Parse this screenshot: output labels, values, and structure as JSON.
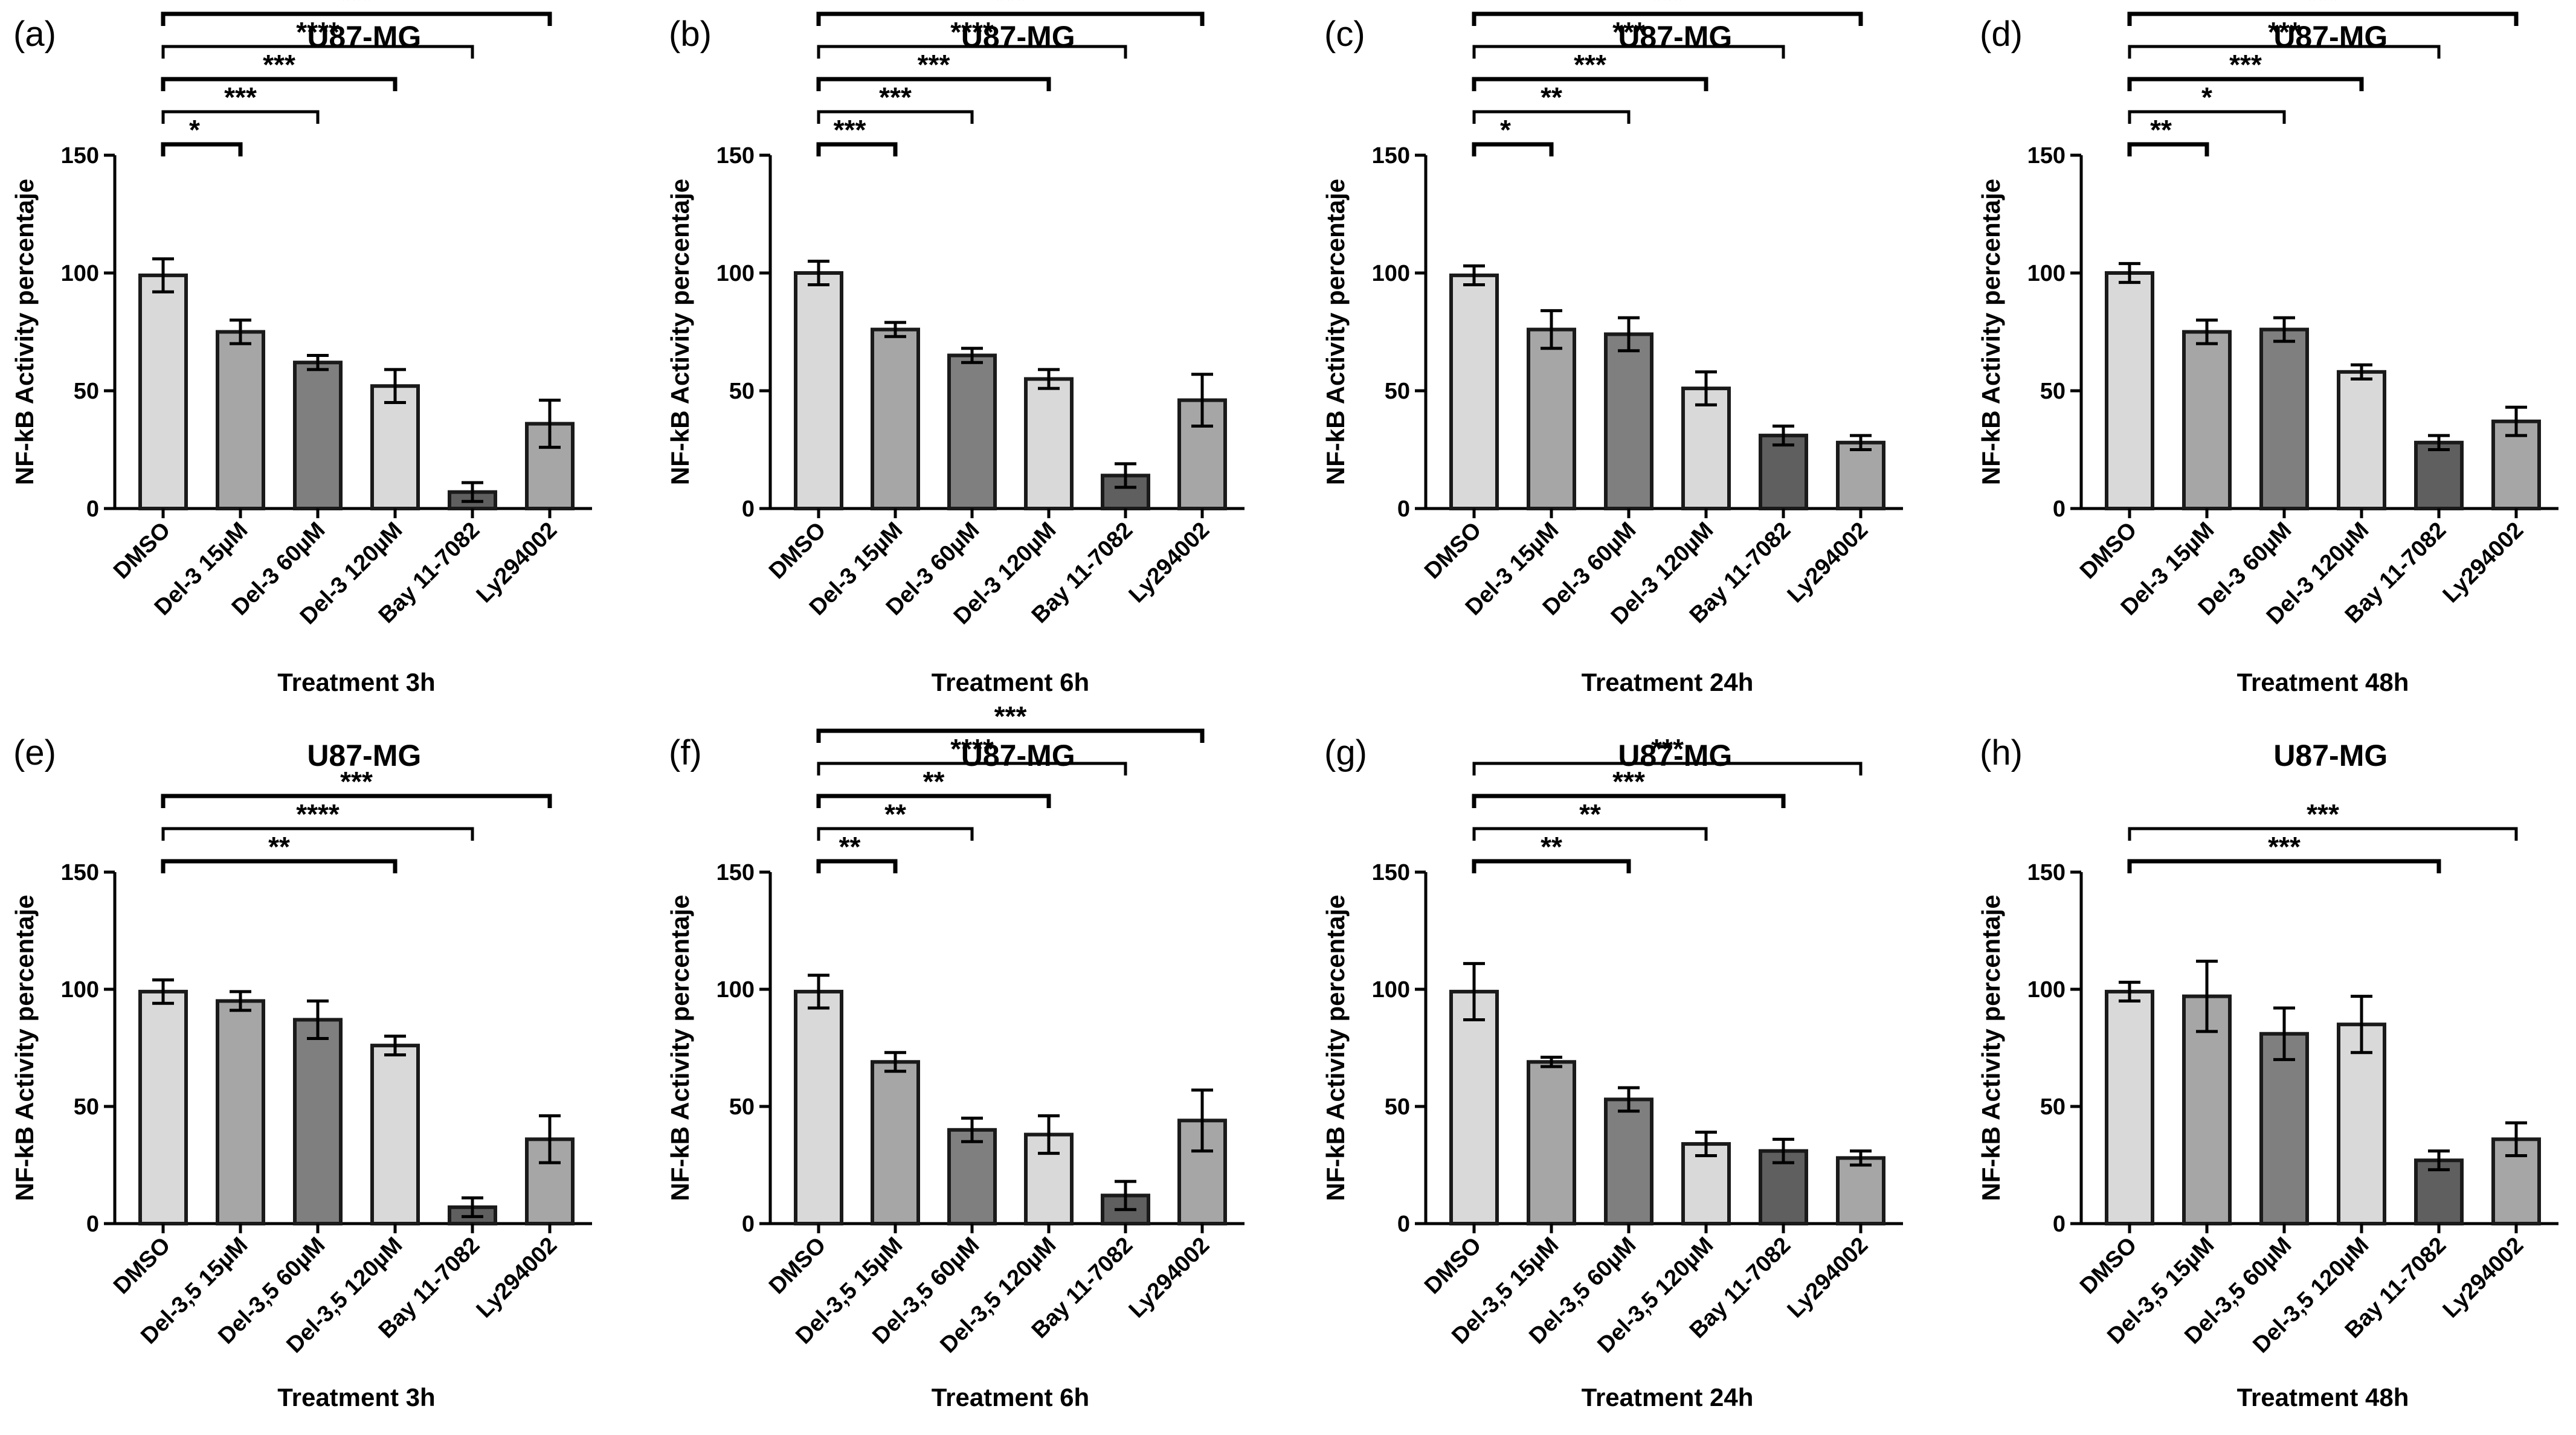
{
  "colors": {
    "light": "#d9d9d9",
    "mid": "#a6a6a6",
    "dark": "#7f7f7f",
    "darkest": "#5f5f5f",
    "outline": "#1a1a1a"
  },
  "chart_data": [
    {
      "panel": "(a)",
      "type": "bar",
      "title": "U87-MG",
      "xlabel": "Treatment 3h",
      "ylabel": "NF-kB Activity percentaje",
      "ylim": [
        0,
        150
      ],
      "yticks": [
        0,
        50,
        100,
        150
      ],
      "categories": [
        "DMSO",
        "Del-3 15µM",
        "Del-3 60µM",
        "Del-3 120µM",
        "Bay 11-7082",
        "Ly294002"
      ],
      "values": [
        99,
        75,
        62,
        52,
        7,
        36
      ],
      "errors": [
        7,
        5,
        3,
        7,
        4,
        10
      ],
      "bar_colors": [
        "light",
        "mid",
        "dark",
        "light",
        "darkest",
        "mid"
      ],
      "significance": [
        {
          "from": 0,
          "to": 1,
          "label": "*"
        },
        {
          "from": 0,
          "to": 2,
          "label": "***"
        },
        {
          "from": 0,
          "to": 3,
          "label": "***"
        },
        {
          "from": 0,
          "to": 4,
          "label": "****"
        },
        {
          "from": 0,
          "to": 5,
          "label": "***"
        }
      ]
    },
    {
      "panel": "(b)",
      "type": "bar",
      "title": "U87-MG",
      "xlabel": "Treatment 6h",
      "ylabel": "NF-kB Activity percentaje",
      "ylim": [
        0,
        150
      ],
      "yticks": [
        0,
        50,
        100,
        150
      ],
      "categories": [
        "DMSO",
        "Del-3 15µM",
        "Del-3 60µM",
        "Del-3 120µM",
        "Bay 11-7082",
        "Ly294002"
      ],
      "values": [
        100,
        76,
        65,
        55,
        14,
        46
      ],
      "errors": [
        5,
        3,
        3,
        4,
        5,
        11
      ],
      "bar_colors": [
        "light",
        "mid",
        "dark",
        "light",
        "darkest",
        "mid"
      ],
      "significance": [
        {
          "from": 0,
          "to": 1,
          "label": "***"
        },
        {
          "from": 0,
          "to": 2,
          "label": "***"
        },
        {
          "from": 0,
          "to": 3,
          "label": "***"
        },
        {
          "from": 0,
          "to": 4,
          "label": "****"
        },
        {
          "from": 0,
          "to": 5,
          "label": "***"
        }
      ]
    },
    {
      "panel": "(c)",
      "type": "bar",
      "title": "U87-MG",
      "xlabel": "Treatment 24h",
      "ylabel": "NF-kB Activity percentaje",
      "ylim": [
        0,
        150
      ],
      "yticks": [
        0,
        50,
        100,
        150
      ],
      "categories": [
        "DMSO",
        "Del-3 15µM",
        "Del-3 60µM",
        "Del-3 120µM",
        "Bay 11-7082",
        "Ly294002"
      ],
      "values": [
        99,
        76,
        74,
        51,
        31,
        28
      ],
      "errors": [
        4,
        8,
        7,
        7,
        4,
        3
      ],
      "bar_colors": [
        "light",
        "mid",
        "dark",
        "light",
        "darkest",
        "mid"
      ],
      "significance": [
        {
          "from": 0,
          "to": 1,
          "label": "*"
        },
        {
          "from": 0,
          "to": 2,
          "label": "**"
        },
        {
          "from": 0,
          "to": 3,
          "label": "***"
        },
        {
          "from": 0,
          "to": 4,
          "label": "***"
        },
        {
          "from": 0,
          "to": 5,
          "label": "***"
        }
      ]
    },
    {
      "panel": "(d)",
      "type": "bar",
      "title": "U87-MG",
      "xlabel": "Treatment 48h",
      "ylabel": "NF-kB Activity percentaje",
      "ylim": [
        0,
        150
      ],
      "yticks": [
        0,
        50,
        100,
        150
      ],
      "categories": [
        "DMSO",
        "Del-3 15µM",
        "Del-3 60µM",
        "Del-3 120µM",
        "Bay 11-7082",
        "Ly294002"
      ],
      "values": [
        100,
        75,
        76,
        58,
        28,
        37
      ],
      "errors": [
        4,
        5,
        5,
        3,
        3,
        6
      ],
      "bar_colors": [
        "light",
        "mid",
        "dark",
        "light",
        "darkest",
        "mid"
      ],
      "significance": [
        {
          "from": 0,
          "to": 1,
          "label": "**"
        },
        {
          "from": 0,
          "to": 2,
          "label": "*"
        },
        {
          "from": 0,
          "to": 3,
          "label": "***"
        },
        {
          "from": 0,
          "to": 4,
          "label": "***"
        },
        {
          "from": 0,
          "to": 5,
          "label": "***"
        }
      ]
    },
    {
      "panel": "(e)",
      "type": "bar",
      "title": "U87-MG",
      "xlabel": "Treatment 3h",
      "ylabel": "NF-kB Activity percentaje",
      "ylim": [
        0,
        150
      ],
      "yticks": [
        0,
        50,
        100,
        150
      ],
      "categories": [
        "DMSO",
        "Del-3,5 15µM",
        "Del-3,5 60µM",
        "Del-3,5 120µM",
        "Bay 11-7082",
        "Ly294002"
      ],
      "values": [
        99,
        95,
        87,
        76,
        7,
        36
      ],
      "errors": [
        5,
        4,
        8,
        4,
        4,
        10
      ],
      "bar_colors": [
        "light",
        "mid",
        "dark",
        "light",
        "darkest",
        "mid"
      ],
      "significance": [
        {
          "from": 0,
          "to": 3,
          "label": "**"
        },
        {
          "from": 0,
          "to": 4,
          "label": "****"
        },
        {
          "from": 0,
          "to": 5,
          "label": "***"
        }
      ]
    },
    {
      "panel": "(f)",
      "type": "bar",
      "title": "U87-MG",
      "xlabel": "Treatment 6h",
      "ylabel": "NF-kB Activity percentaje",
      "ylim": [
        0,
        150
      ],
      "yticks": [
        0,
        50,
        100,
        150
      ],
      "categories": [
        "DMSO",
        "Del-3,5 15µM",
        "Del-3,5 60µM",
        "Del-3,5 120µM",
        "Bay 11-7082",
        "Ly294002"
      ],
      "values": [
        99,
        69,
        40,
        38,
        12,
        44
      ],
      "errors": [
        7,
        4,
        5,
        8,
        6,
        13
      ],
      "bar_colors": [
        "light",
        "mid",
        "dark",
        "light",
        "darkest",
        "mid"
      ],
      "significance": [
        {
          "from": 0,
          "to": 1,
          "label": "**"
        },
        {
          "from": 0,
          "to": 2,
          "label": "**"
        },
        {
          "from": 0,
          "to": 3,
          "label": "**"
        },
        {
          "from": 0,
          "to": 4,
          "label": "****"
        },
        {
          "from": 0,
          "to": 5,
          "label": "***"
        }
      ]
    },
    {
      "panel": "(g)",
      "type": "bar",
      "title": "U87-MG",
      "xlabel": "Treatment 24h",
      "ylabel": "NF-kB Activity percentaje",
      "ylim": [
        0,
        150
      ],
      "yticks": [
        0,
        50,
        100,
        150
      ],
      "categories": [
        "DMSO",
        "Del-3,5 15µM",
        "Del-3,5 60µM",
        "Del-3,5 120µM",
        "Bay 11-7082",
        "Ly294002"
      ],
      "values": [
        99,
        69,
        53,
        34,
        31,
        28
      ],
      "errors": [
        12,
        2,
        5,
        5,
        5,
        3
      ],
      "bar_colors": [
        "light",
        "mid",
        "dark",
        "light",
        "darkest",
        "mid"
      ],
      "significance": [
        {
          "from": 0,
          "to": 2,
          "label": "**"
        },
        {
          "from": 0,
          "to": 3,
          "label": "**"
        },
        {
          "from": 0,
          "to": 4,
          "label": "***"
        },
        {
          "from": 0,
          "to": 5,
          "label": "***"
        }
      ]
    },
    {
      "panel": "(h)",
      "type": "bar",
      "title": "U87-MG",
      "xlabel": "Treatment 48h",
      "ylabel": "NF-kB Activity percentaje",
      "ylim": [
        0,
        150
      ],
      "yticks": [
        0,
        50,
        100,
        150
      ],
      "categories": [
        "DMSO",
        "Del-3,5 15µM",
        "Del-3,5 60µM",
        "Del-3,5 120µM",
        "Bay 11-7082",
        "Ly294002"
      ],
      "values": [
        99,
        97,
        81,
        85,
        27,
        36
      ],
      "errors": [
        4,
        15,
        11,
        12,
        4,
        7
      ],
      "bar_colors": [
        "light",
        "mid",
        "dark",
        "light",
        "darkest",
        "mid"
      ],
      "significance": [
        {
          "from": 0,
          "to": 4,
          "label": "***"
        },
        {
          "from": 0,
          "to": 5,
          "label": "***"
        }
      ]
    }
  ]
}
